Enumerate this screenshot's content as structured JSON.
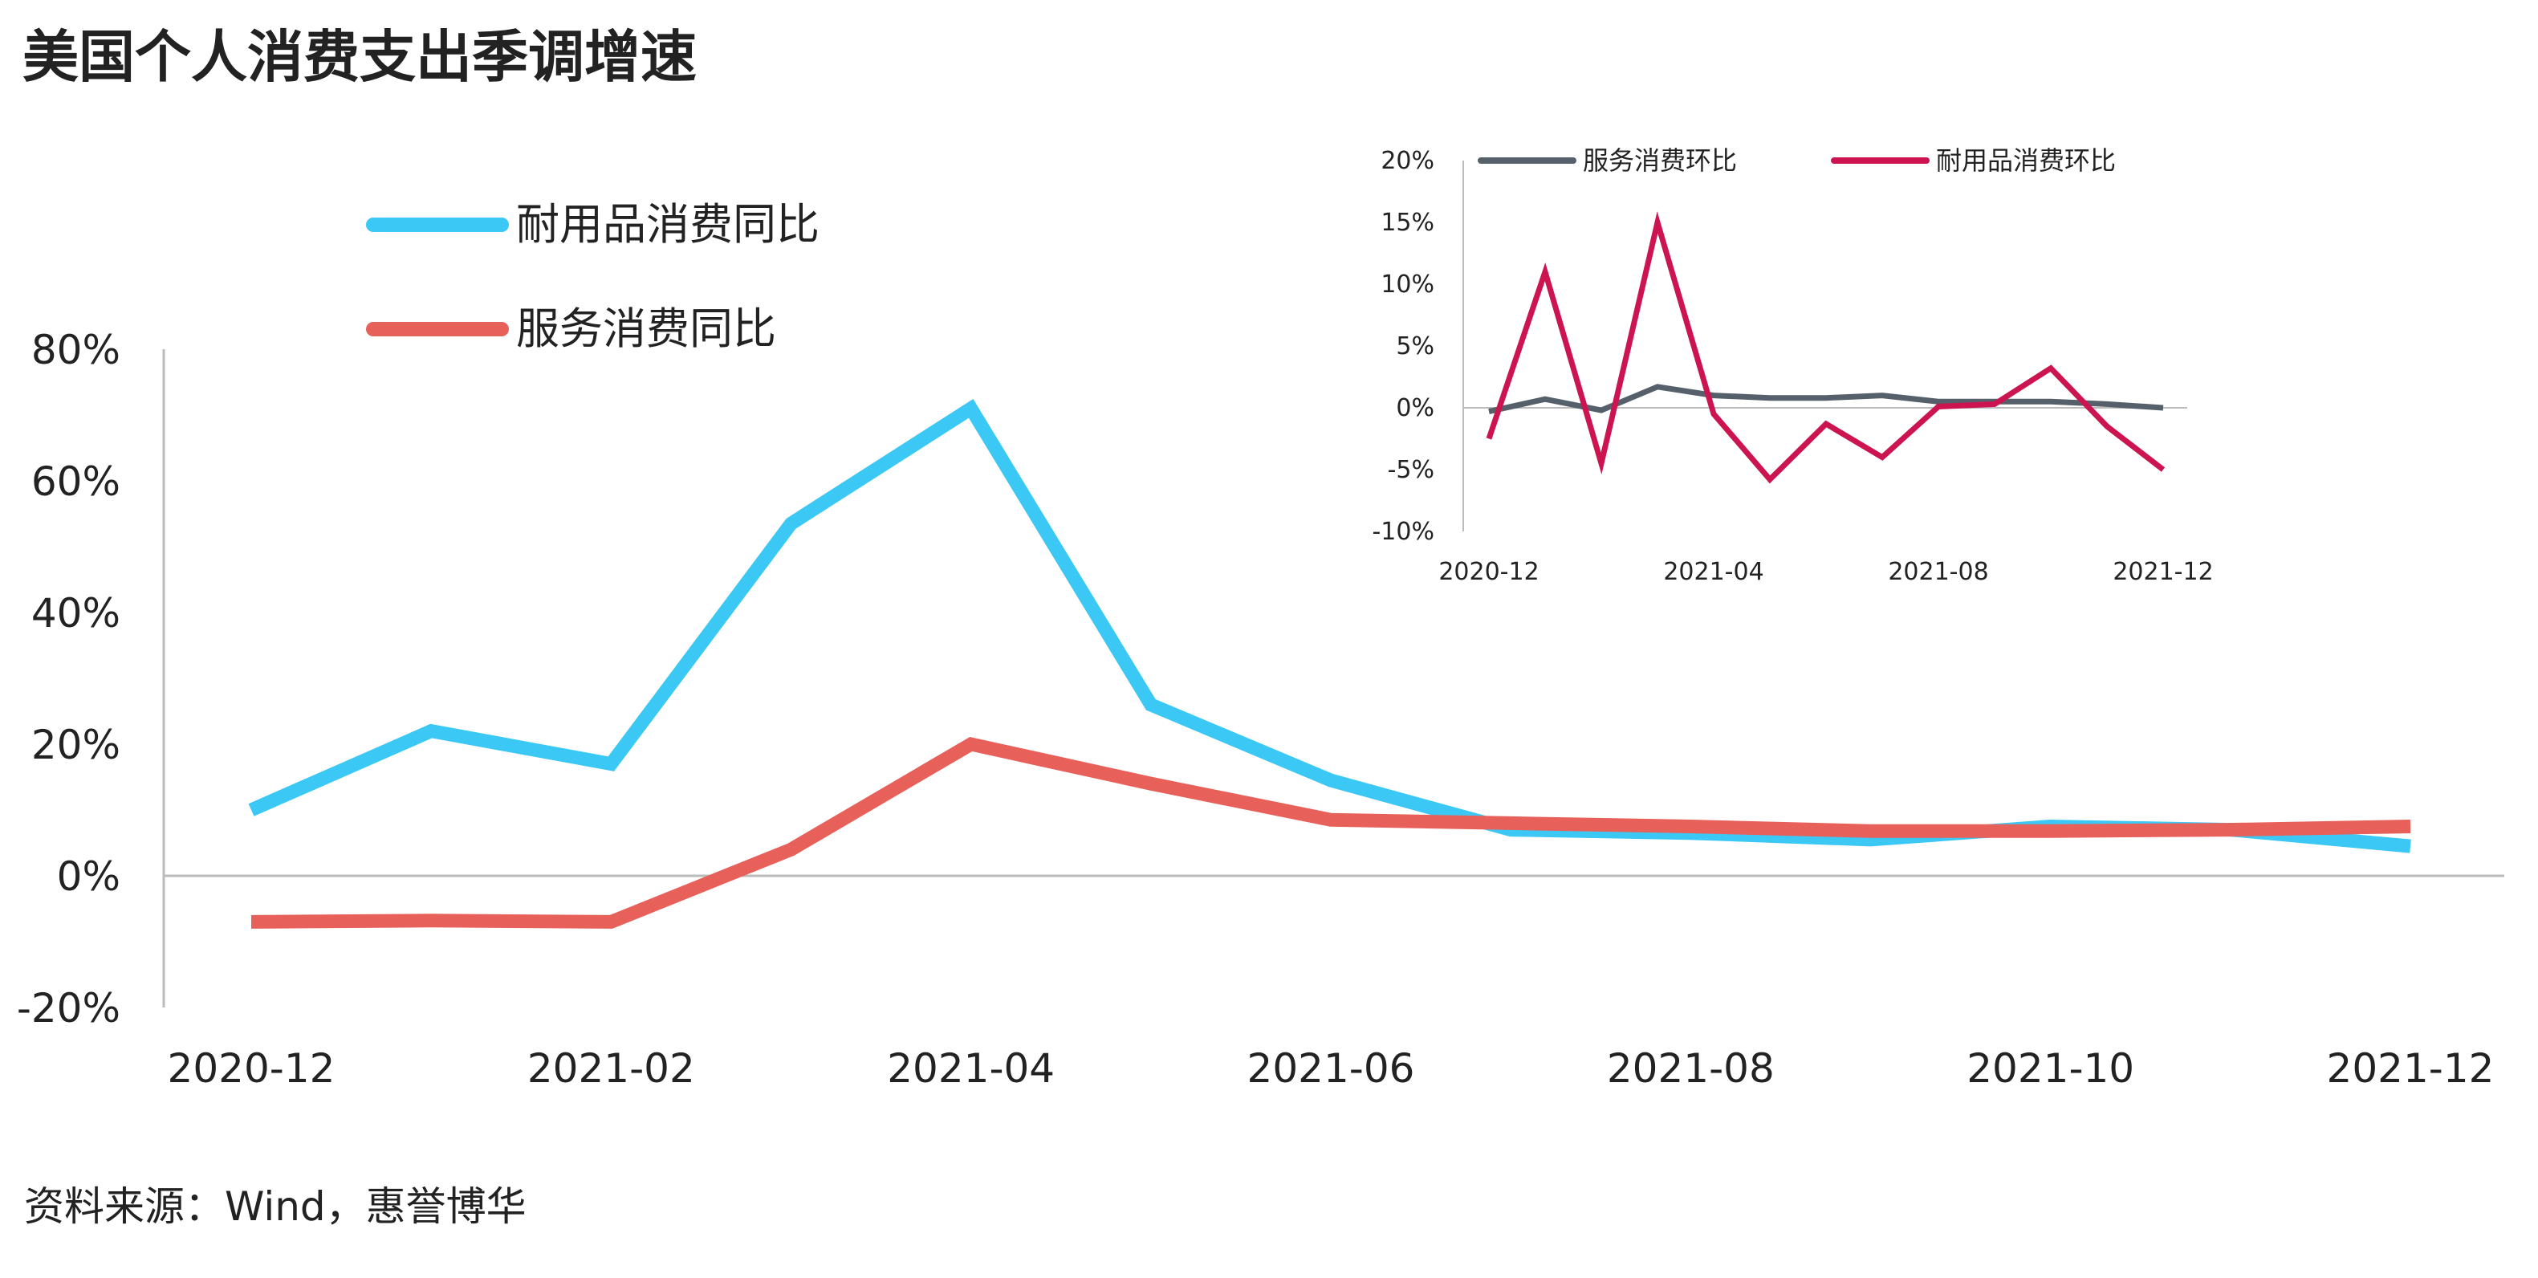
{
  "title": "美国个人消费支出季调增速",
  "source": "资料来源：Wind，惠誉博华",
  "colors": {
    "durable_yoy": "#3cc8f5",
    "services_yoy": "#e8605a",
    "services_mom": "#56606a",
    "durable_mom": "#cc1450",
    "axis": "#bbbbbb"
  },
  "chart_data": [
    {
      "type": "line",
      "title": "",
      "x": [
        "2020-12",
        "2021-01",
        "2021-02",
        "2021-03",
        "2021-04",
        "2021-05",
        "2021-06",
        "2021-07",
        "2021-08",
        "2021-09",
        "2021-10",
        "2021-11",
        "2021-12"
      ],
      "x_tick_labels": [
        "2020-12",
        "2021-02",
        "2021-04",
        "2021-06",
        "2021-08",
        "2021-10",
        "2021-12"
      ],
      "y_tick_labels": [
        "80%",
        "60%",
        "40%",
        "20%",
        "0%",
        "-20%"
      ],
      "ylim": [
        -20,
        80
      ],
      "legend_position": "top-left",
      "grid": false,
      "series": [
        {
          "name": "耐用品消费同比",
          "color_key": "durable_yoy",
          "values": [
            10,
            22,
            17,
            53.5,
            71,
            26,
            14.5,
            7,
            6.5,
            5.5,
            7.5,
            7,
            4.5
          ]
        },
        {
          "name": "服务消费同比",
          "color_key": "services_yoy",
          "values": [
            -7,
            -6.8,
            -7,
            4,
            20,
            14,
            8.5,
            8,
            7.5,
            6.8,
            6.8,
            7,
            7.5
          ]
        }
      ]
    },
    {
      "type": "line",
      "title": "",
      "x": [
        "2020-12",
        "2021-01",
        "2021-02",
        "2021-03",
        "2021-04",
        "2021-05",
        "2021-06",
        "2021-07",
        "2021-08",
        "2021-09",
        "2021-10",
        "2021-11",
        "2021-12"
      ],
      "x_tick_labels": [
        "2020-12",
        "2021-04",
        "2021-08",
        "2021-12"
      ],
      "y_tick_labels": [
        "20%",
        "15%",
        "10%",
        "5%",
        "0%",
        "-5%",
        "-10%"
      ],
      "ylim": [
        -10,
        20
      ],
      "legend_position": "top",
      "grid": false,
      "series": [
        {
          "name": "服务消费环比",
          "color_key": "services_mom",
          "values": [
            -0.3,
            0.7,
            -0.2,
            1.7,
            1.0,
            0.8,
            0.8,
            1.0,
            0.5,
            0.5,
            0.5,
            0.3,
            0.0
          ]
        },
        {
          "name": "耐用品消费环比",
          "color_key": "durable_mom",
          "values": [
            -2.5,
            11,
            -4.5,
            15,
            -0.5,
            -5.8,
            -1.3,
            -4,
            0.1,
            0.3,
            3.2,
            -1.5,
            -5
          ]
        }
      ]
    }
  ]
}
